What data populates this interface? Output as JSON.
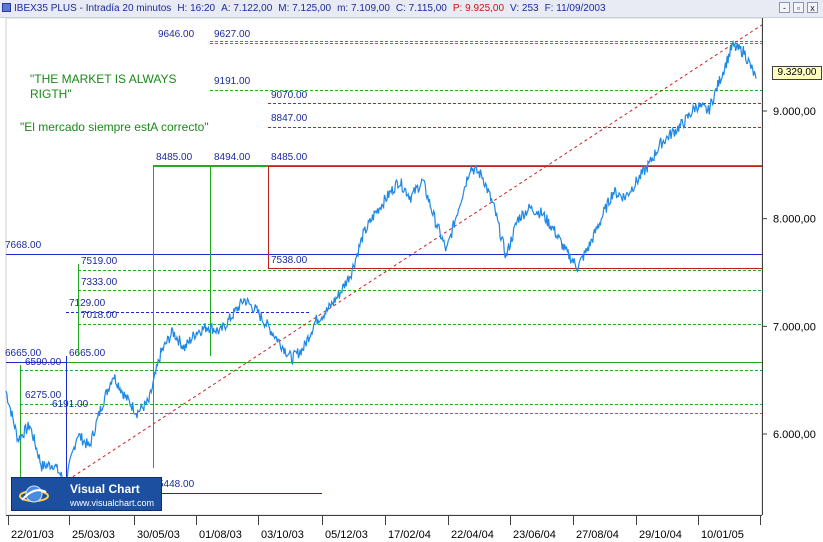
{
  "window": {
    "title_parts": [
      {
        "text": "IBEX35 PLUS - Intradía 20 minutos",
        "color": "#1a2a9e"
      },
      {
        "text": "H: 16:20",
        "color": "#1a2a9e"
      },
      {
        "text": "A: 7.122,00",
        "color": "#1a2a9e"
      },
      {
        "text": "M: 7.125,00",
        "color": "#1a2a9e"
      },
      {
        "text": "m: 7.109,00",
        "color": "#1a2a9e"
      },
      {
        "text": "C: 7.115,00",
        "color": "#1a2a9e"
      },
      {
        "text": "P: 9.925,00",
        "color": "#d01010"
      },
      {
        "text": "V: 253",
        "color": "#1a2a9e"
      },
      {
        "text": "F: 11/09/2003",
        "color": "#1a2a9e"
      }
    ],
    "buttons": [
      "-",
      "▫",
      "x"
    ]
  },
  "annotations": {
    "quote_en": "\"THE MARKET IS ALWAYS\nRIGTH\"",
    "quote_es": "\"El mercado siempre estA correcto\""
  },
  "logo": {
    "name": "Visual Chart",
    "url": "www.visualchart.com"
  },
  "price_tag": "9.329,00",
  "chart_data": {
    "type": "line",
    "instrument": "IBEX35 PLUS",
    "interval": "Intradía 20 minutos",
    "x_tick_labels": [
      "22/01/03",
      "25/03/03",
      "30/05/03",
      "01/08/03",
      "03/10/03",
      "05/12/03",
      "17/02/04",
      "22/04/04",
      "23/06/04",
      "27/08/04",
      "29/10/04",
      "10/01/05"
    ],
    "y_tick_labels": [
      {
        "value": 6000,
        "label": "6.000,00"
      },
      {
        "value": 7000,
        "label": "7.000,00"
      },
      {
        "value": 8000,
        "label": "8.000,00"
      },
      {
        "value": 9000,
        "label": "9.000,00"
      }
    ],
    "ylim": [
      5300,
      9800
    ],
    "grid": false,
    "last_price": 9329,
    "series": [
      {
        "points": [
          [
            0,
            6400
          ],
          [
            4,
            5950
          ],
          [
            8,
            6080
          ],
          [
            12,
            5700
          ],
          [
            16,
            5720
          ],
          [
            20,
            5550
          ],
          [
            24,
            6000
          ],
          [
            28,
            5880
          ],
          [
            32,
            6250
          ],
          [
            36,
            6550
          ],
          [
            40,
            6350
          ],
          [
            44,
            6200
          ],
          [
            48,
            6300
          ],
          [
            52,
            6750
          ],
          [
            56,
            6950
          ],
          [
            60,
            6800
          ],
          [
            64,
            6950
          ],
          [
            68,
            7000
          ],
          [
            72,
            6950
          ],
          [
            76,
            7100
          ],
          [
            80,
            7250
          ],
          [
            84,
            7150
          ],
          [
            88,
            7000
          ],
          [
            92,
            6850
          ],
          [
            96,
            6700
          ],
          [
            100,
            6800
          ],
          [
            104,
            7050
          ],
          [
            108,
            7150
          ],
          [
            112,
            7300
          ],
          [
            116,
            7500
          ],
          [
            120,
            7850
          ],
          [
            124,
            8050
          ],
          [
            128,
            8200
          ],
          [
            132,
            8350
          ],
          [
            136,
            8200
          ],
          [
            140,
            8350
          ],
          [
            144,
            8000
          ],
          [
            148,
            7700
          ],
          [
            152,
            8100
          ],
          [
            156,
            8480
          ],
          [
            160,
            8400
          ],
          [
            164,
            8100
          ],
          [
            168,
            7650
          ],
          [
            172,
            8000
          ],
          [
            176,
            8100
          ],
          [
            180,
            8050
          ],
          [
            184,
            7900
          ],
          [
            188,
            7700
          ],
          [
            192,
            7550
          ],
          [
            196,
            7750
          ],
          [
            200,
            8000
          ],
          [
            204,
            8250
          ],
          [
            208,
            8200
          ],
          [
            212,
            8350
          ],
          [
            216,
            8500
          ],
          [
            220,
            8700
          ],
          [
            224,
            8800
          ],
          [
            228,
            8900
          ],
          [
            232,
            9050
          ],
          [
            236,
            9000
          ],
          [
            240,
            9300
          ],
          [
            244,
            9600
          ],
          [
            248,
            9550
          ],
          [
            252,
            9300
          ]
        ]
      }
    ],
    "levels": [
      {
        "value": 9646,
        "label": "9646.00",
        "color": "#22aa22",
        "style": "dashed"
      },
      {
        "value": 9627,
        "label": "9627.00",
        "color": "#22aa22",
        "style": "dashed"
      },
      {
        "value": 9191,
        "label": "9191.00",
        "color": "#22aa22",
        "style": "dashed"
      },
      {
        "value": 9070,
        "label": "9070.00",
        "color": "#c02020",
        "style": "dashed"
      },
      {
        "value": 8847,
        "label": "8847.00",
        "color": "#c02020",
        "style": "dashed"
      },
      {
        "value": 8494,
        "label": "8494.00",
        "color": "#22aa22",
        "style": "solid"
      },
      {
        "value": 8485,
        "label": "8485.00",
        "color": "#22aa22",
        "style": "solid"
      },
      {
        "value": 8485,
        "label": "8485.00",
        "color": "#c02020",
        "style": "solid"
      },
      {
        "value": 7668,
        "label": "7668.00",
        "color": "#1a2acf",
        "style": "solid"
      },
      {
        "value": 7538,
        "label": "7538.00",
        "color": "#c02020",
        "style": "solid"
      },
      {
        "value": 7519,
        "label": "7519.00",
        "color": "#22aa22",
        "style": "dashed"
      },
      {
        "value": 7333,
        "label": "7333.00",
        "color": "#22aa22",
        "style": "dashed"
      },
      {
        "value": 7129,
        "label": "7129.00",
        "color": "#1a2acf",
        "style": "dashed"
      },
      {
        "value": 7018,
        "label": "7018.00",
        "color": "#22aa22",
        "style": "dashed"
      },
      {
        "value": 6665,
        "label": "6665.00",
        "color": "#1a2acf",
        "style": "solid"
      },
      {
        "value": 6665,
        "label": "6665.00",
        "color": "#22aa22",
        "style": "solid"
      },
      {
        "value": 6590,
        "label": "6590.00",
        "color": "#22aa22",
        "style": "dashed"
      },
      {
        "value": 6275,
        "label": "6275.00",
        "color": "#22aa22",
        "style": "dashed"
      },
      {
        "value": 6191,
        "label": "6191.00",
        "color": "#22aa22",
        "style": "dashed"
      },
      {
        "value": 5448,
        "label": "5448.00",
        "color": "#1a2acf",
        "style": "solid"
      }
    ],
    "trendline": {
      "from": [
        14,
        5450
      ],
      "to": [
        254,
        9800
      ],
      "color": "#d02020",
      "style": "dashed"
    },
    "colors": {
      "price": "#1e88e5",
      "axis": "#404040",
      "support": "#22aa22",
      "resistance": "#c02020",
      "channel": "#1a2acf"
    }
  }
}
